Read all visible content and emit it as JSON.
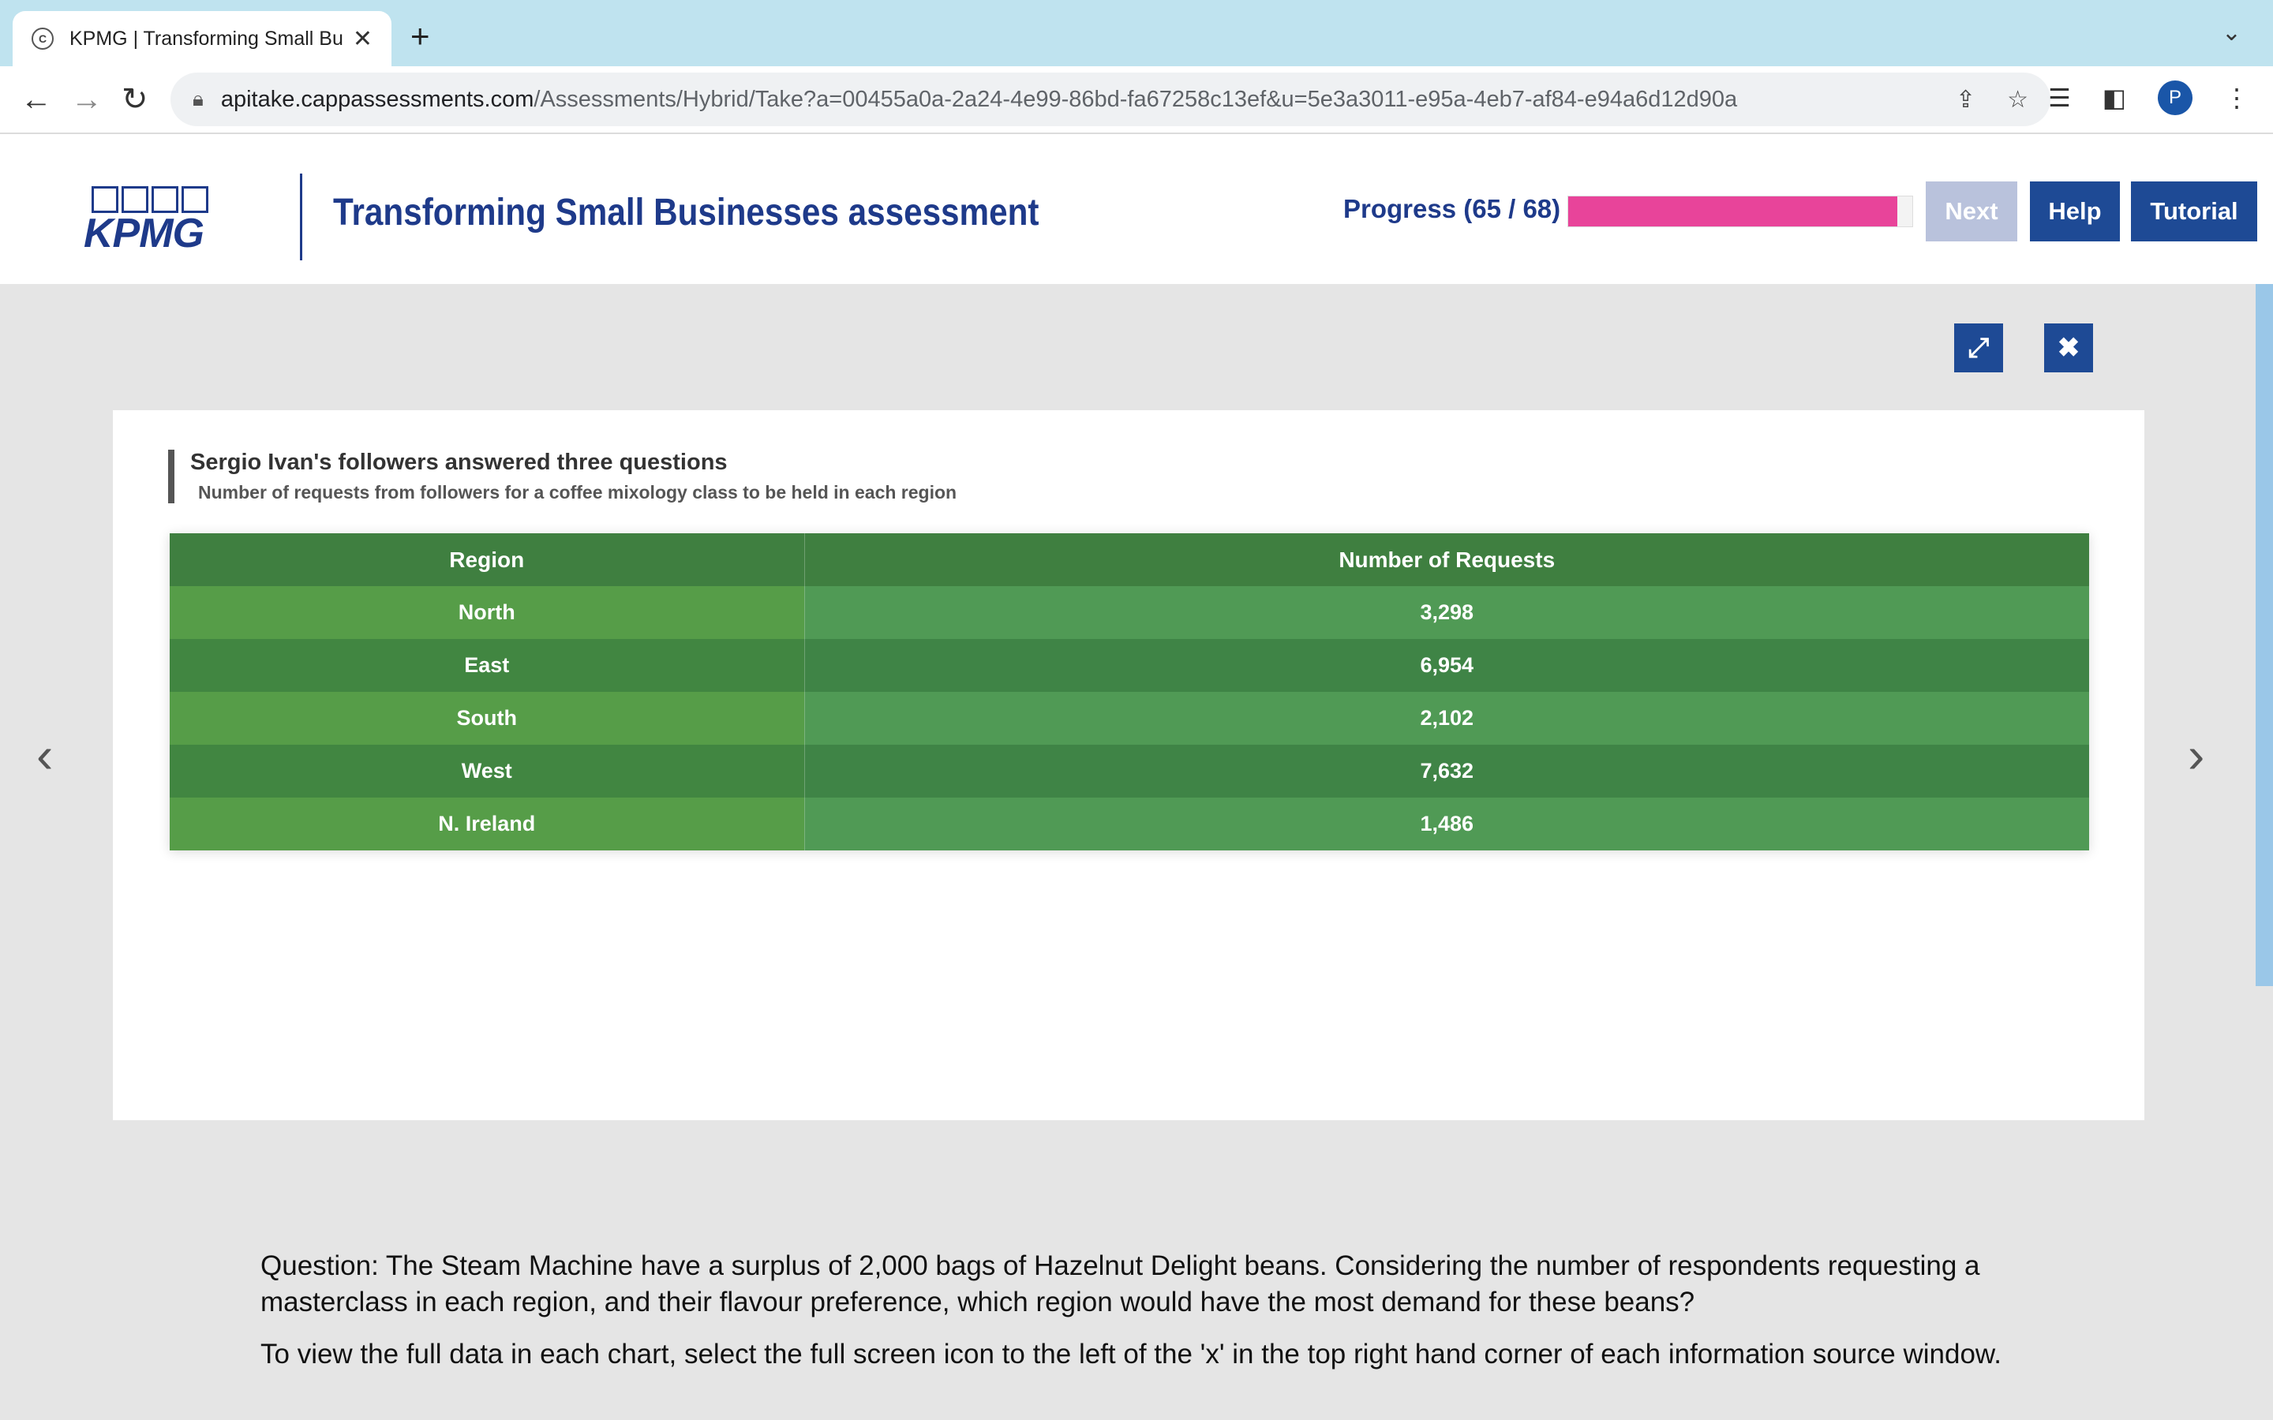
{
  "browser": {
    "tab_title": "KPMG | Transforming Small Bu",
    "favicon_letter": "C",
    "url_host": "apitake.cappassessments.com",
    "url_path": "/Assessments/Hybrid/Take?a=00455a0a-2a24-4e99-86bd-fa67258c13ef&u=5e3a3011-e95a-4eb7-af84-e94a6d12d90a",
    "profile_initial": "P"
  },
  "header": {
    "logo_text": "KPMG",
    "title": "Transforming Small Businesses assessment",
    "progress_label": "Progress (65 / 68)",
    "progress_fraction": 0.956,
    "next_label": "Next",
    "help_label": "Help",
    "tutorial_label": "Tutorial"
  },
  "source": {
    "title": "Sergio Ivan's followers answered three questions",
    "subtitle": "Number of requests from followers for a coffee mixology class to be held in each region",
    "table": {
      "headers": [
        "Region",
        "Number of Requests"
      ],
      "rows": [
        [
          "North",
          "3,298"
        ],
        [
          "East",
          "6,954"
        ],
        [
          "South",
          "2,102"
        ],
        [
          "West",
          "7,632"
        ],
        [
          "N. Ireland",
          "1,486"
        ]
      ]
    }
  },
  "question": {
    "text": "Question: The Steam Machine have a surplus of 2,000 bags of Hazelnut Delight beans. Considering the number of respondents requesting a masterclass in each region, and their flavour preference, which region would have the most demand for these beans?",
    "instruction": "To view the full data in each chart, select the full screen icon to the left of the 'x' in the top right hand corner of each information source window."
  },
  "colors": {
    "brand_blue": "#1e4a95",
    "progress_pink": "#e8449a",
    "table_header": "#3f7f40"
  }
}
